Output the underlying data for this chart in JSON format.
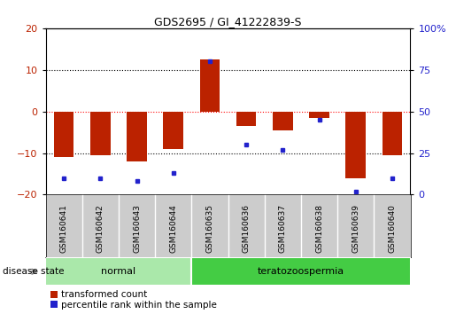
{
  "title": "GDS2695 / GI_41222839-S",
  "samples": [
    "GSM160641",
    "GSM160642",
    "GSM160643",
    "GSM160644",
    "GSM160635",
    "GSM160636",
    "GSM160637",
    "GSM160638",
    "GSM160639",
    "GSM160640"
  ],
  "red_values": [
    -11,
    -10.5,
    -12,
    -9,
    12.5,
    -3.5,
    -4.5,
    -1.5,
    -16,
    -10.5
  ],
  "blue_values_pct": [
    10,
    10,
    8,
    13,
    80,
    30,
    27,
    45,
    2,
    10
  ],
  "groups": [
    {
      "label": "normal",
      "start": 0,
      "end": 4,
      "color": "#aae8aa"
    },
    {
      "label": "teratozoospermia",
      "start": 4,
      "end": 10,
      "color": "#44cc44"
    }
  ],
  "ylim": [
    -20,
    20
  ],
  "yticks_left": [
    -20,
    -10,
    0,
    10,
    20
  ],
  "yticks_right": [
    0,
    25,
    50,
    75,
    100
  ],
  "grid_lines_black": [
    -10,
    10
  ],
  "grid_line_red": 0,
  "red_color": "#bb2200",
  "blue_color": "#2222cc",
  "bar_width": 0.55,
  "legend_red_label": "transformed count",
  "legend_blue_label": "percentile rank within the sample",
  "disease_state_label": "disease state",
  "background_color": "#ffffff",
  "plot_bg_color": "#ffffff",
  "tick_label_area_color": "#cccccc"
}
